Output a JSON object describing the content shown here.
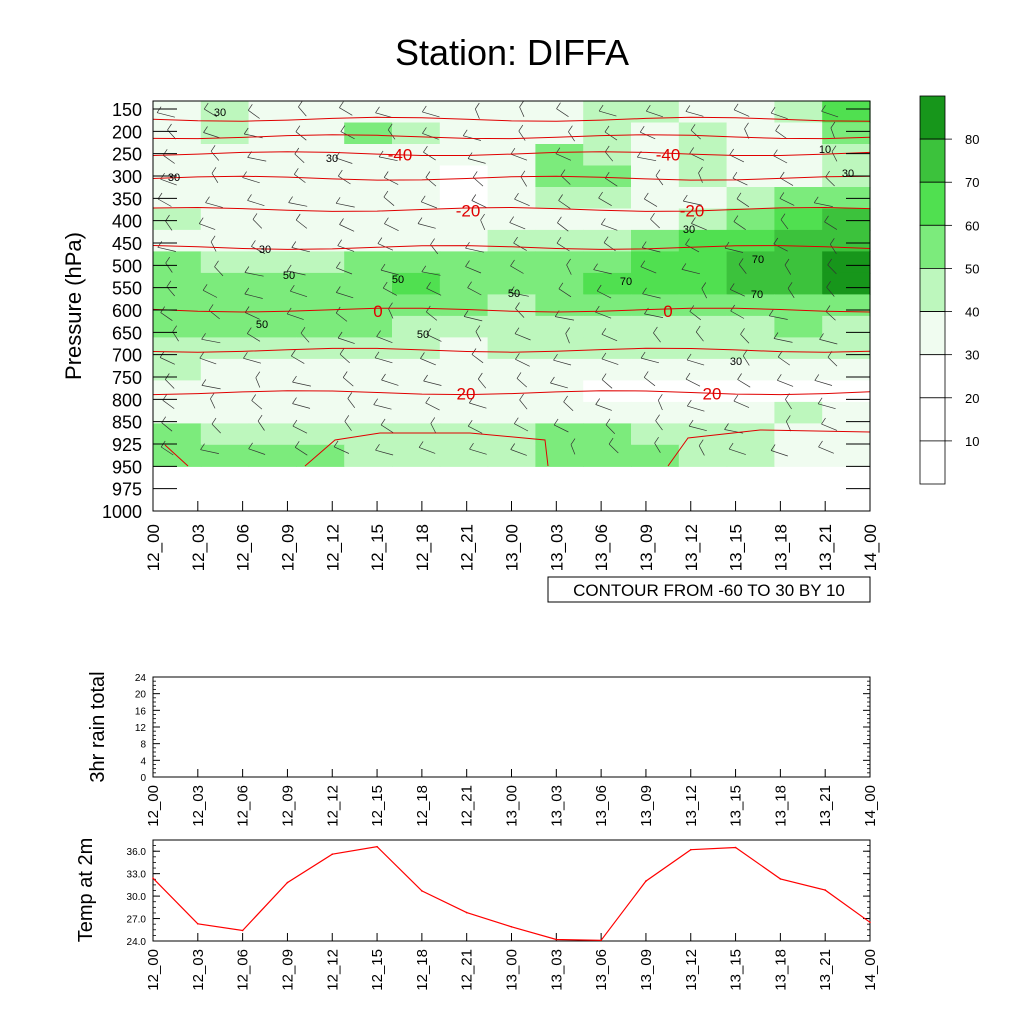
{
  "chart_data": [
    {
      "type": "heatmap",
      "title": "Station: DIFFA",
      "ylabel": "Pressure (hPa)",
      "y_ticks": [
        "150",
        "200",
        "250",
        "300",
        "350",
        "400",
        "450",
        "500",
        "550",
        "600",
        "650",
        "700",
        "750",
        "800",
        "850",
        "925",
        "950",
        "975",
        "1000"
      ],
      "x_ticks": [
        "12_00",
        "12_03",
        "12_06",
        "12_09",
        "12_12",
        "12_15",
        "12_18",
        "12_21",
        "13_00",
        "13_03",
        "13_06",
        "13_09",
        "13_12",
        "13_15",
        "13_18",
        "13_21",
        "14_00"
      ],
      "info_label": "CONTOUR FROM -60 TO 30 BY 10",
      "colorbar": {
        "labels": [
          "10",
          "20",
          "30",
          "40",
          "50",
          "60",
          "70",
          "80"
        ],
        "colors": [
          "#ffffff",
          "#ffffff",
          "#ffffff",
          "#f0fcf0",
          "#bdf7bd",
          "#7ceb7c",
          "#50e050",
          "#3cc23c",
          "#17961b"
        ]
      },
      "rh_rows": [
        [
          35,
          40,
          35,
          30,
          30,
          35,
          30,
          30,
          35,
          40,
          45,
          30,
          35,
          40,
          60
        ],
        [
          30,
          40,
          35,
          35,
          50,
          40,
          30,
          30,
          35,
          40,
          30,
          45,
          35,
          35,
          55
        ],
        [
          35,
          30,
          30,
          35,
          35,
          30,
          30,
          35,
          50,
          45,
          30,
          45,
          35,
          30,
          40
        ],
        [
          30,
          35,
          35,
          30,
          35,
          30,
          25,
          30,
          55,
          50,
          30,
          40,
          30,
          30,
          45
        ],
        [
          35,
          35,
          30,
          30,
          30,
          30,
          25,
          30,
          45,
          40,
          35,
          35,
          40,
          50,
          55
        ],
        [
          40,
          35,
          30,
          30,
          30,
          30,
          30,
          35,
          35,
          35,
          35,
          40,
          55,
          65,
          70
        ],
        [
          35,
          35,
          30,
          30,
          35,
          35,
          35,
          40,
          40,
          45,
          50,
          60,
          65,
          70,
          75
        ],
        [
          50,
          45,
          40,
          40,
          50,
          55,
          50,
          50,
          55,
          55,
          60,
          65,
          70,
          75,
          80
        ],
        [
          55,
          55,
          50,
          55,
          55,
          60,
          55,
          50,
          55,
          60,
          60,
          65,
          70,
          75,
          80
        ],
        [
          55,
          55,
          55,
          50,
          55,
          55,
          50,
          45,
          50,
          55,
          55,
          55,
          55,
          55,
          55
        ],
        [
          50,
          50,
          50,
          50,
          50,
          45,
          40,
          40,
          45,
          45,
          45,
          45,
          45,
          50,
          45
        ],
        [
          45,
          45,
          40,
          40,
          40,
          40,
          35,
          40,
          40,
          40,
          40,
          40,
          40,
          40,
          40
        ],
        [
          40,
          35,
          35,
          35,
          35,
          35,
          35,
          35,
          35,
          30,
          30,
          30,
          30,
          30,
          30
        ],
        [
          35,
          35,
          35,
          35,
          35,
          30,
          30,
          30,
          30,
          25,
          25,
          25,
          25,
          25,
          25
        ],
        [
          35,
          35,
          35,
          35,
          30,
          30,
          30,
          30,
          30,
          30,
          30,
          30,
          35,
          40,
          30
        ],
        [
          50,
          45,
          40,
          40,
          40,
          40,
          40,
          45,
          50,
          50,
          45,
          40,
          40,
          35,
          30
        ],
        [
          55,
          50,
          55,
          50,
          45,
          40,
          40,
          45,
          55,
          55,
          50,
          45,
          40,
          35,
          30
        ]
      ],
      "temp_contours": [
        {
          "label": "-40",
          "pressure": 250
        },
        {
          "label": "-20",
          "pressure": 375
        },
        {
          "label": "0",
          "pressure": 600
        },
        {
          "label": "20",
          "pressure": 785
        }
      ],
      "rh_contour_labels": [
        "30",
        "30",
        "30",
        "30",
        "50",
        "50",
        "50",
        "50",
        "50",
        "70",
        "70",
        "70",
        "30",
        "30",
        "10",
        "30"
      ]
    },
    {
      "type": "bar",
      "ylabel": "3hr rain total",
      "ylim": [
        0,
        24
      ],
      "y_ticks": [
        "0",
        "4",
        "8",
        "12",
        "16",
        "20",
        "24"
      ],
      "x_ticks": [
        "12_00",
        "12_03",
        "12_06",
        "12_09",
        "12_12",
        "12_15",
        "12_18",
        "12_21",
        "13_00",
        "13_03",
        "13_06",
        "13_09",
        "13_12",
        "13_15",
        "13_18",
        "13_21",
        "14_00"
      ],
      "values": [
        0,
        0,
        0,
        0,
        0,
        0,
        0,
        0,
        0,
        0,
        0,
        0,
        0,
        0,
        0,
        0,
        0
      ]
    },
    {
      "type": "line",
      "ylabel": "Temp at 2m",
      "ylim": [
        24.0,
        37.5
      ],
      "y_ticks": [
        "24.0",
        "27.0",
        "30.0",
        "33.0",
        "36.0"
      ],
      "x_ticks": [
        "12_00",
        "12_03",
        "12_06",
        "12_09",
        "12_12",
        "12_15",
        "12_18",
        "12_21",
        "13_00",
        "13_03",
        "13_06",
        "13_09",
        "13_12",
        "13_15",
        "13_18",
        "13_21",
        "14_00"
      ],
      "values": [
        32.4,
        26.3,
        25.4,
        31.8,
        35.6,
        36.6,
        30.7,
        27.8,
        25.9,
        24.2,
        24.1,
        32.0,
        36.2,
        36.5,
        32.3,
        30.8,
        26.5
      ]
    }
  ]
}
